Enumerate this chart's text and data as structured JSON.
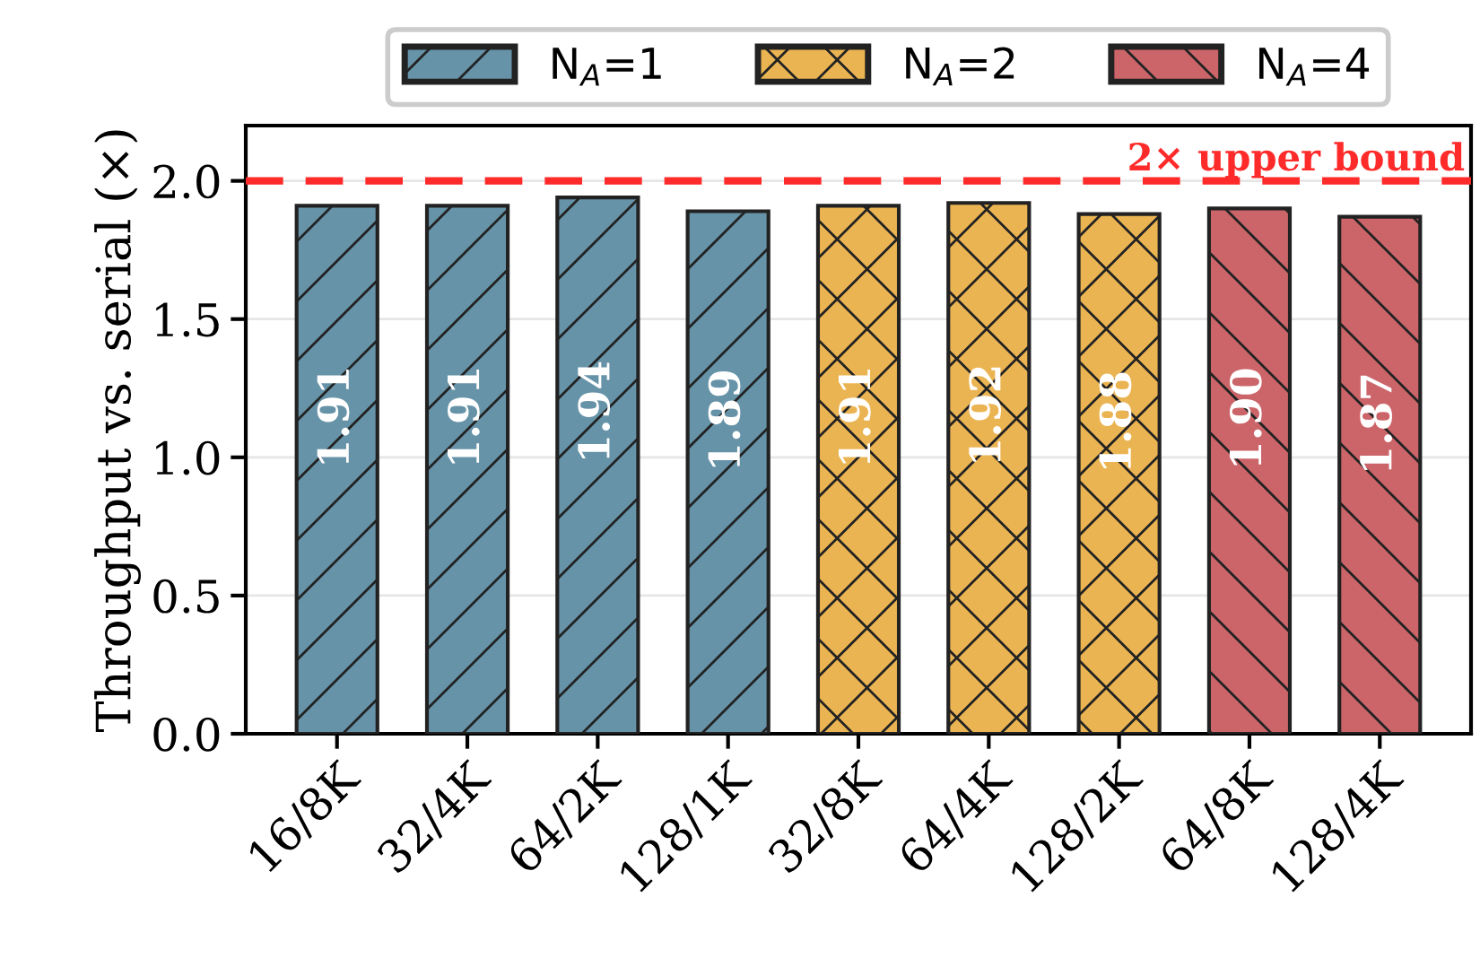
{
  "chart_data": {
    "type": "bar",
    "ylabel": "Throughput vs. serial (×)",
    "categories": [
      "16/8K",
      "32/4K",
      "64/2K",
      "128/1K",
      "32/8K",
      "64/4K",
      "128/2K",
      "64/8K",
      "128/4K"
    ],
    "series": [
      {
        "name": "N$_{A}$=1",
        "color": "#6693a8",
        "values": [
          1.91,
          1.91,
          1.94,
          1.89,
          null,
          null,
          null,
          null,
          null
        ]
      },
      {
        "name": "N$_{A}$=2",
        "color": "#ebb452",
        "values": [
          null,
          null,
          null,
          null,
          1.91,
          1.92,
          1.88,
          null,
          null
        ]
      },
      {
        "name": "N$_{A}$=4",
        "color": "#cc6569",
        "values": [
          null,
          null,
          null,
          null,
          null,
          null,
          null,
          1.9,
          1.87
        ]
      }
    ],
    "ylim": [
      0,
      2.2
    ],
    "yticks": [
      {
        "value": 0,
        "label": "0.0"
      },
      {
        "value": 0.5,
        "label": "0.5"
      },
      {
        "value": 1,
        "label": "1.0"
      },
      {
        "value": 1.5,
        "label": "1.5"
      },
      {
        "value": 2,
        "label": "2.0"
      }
    ],
    "ref_lines": [
      {
        "axis": "y",
        "value": 2.0,
        "label": "2× upper bound",
        "color": "#ff2a2a",
        "line_style": "dashed"
      }
    ],
    "value_labels": [
      "1.91",
      "1.91",
      "1.94",
      "1.89",
      "1.91",
      "1.92",
      "1.88",
      "1.90",
      "1.87"
    ],
    "grid": "y",
    "legend": "top"
  }
}
